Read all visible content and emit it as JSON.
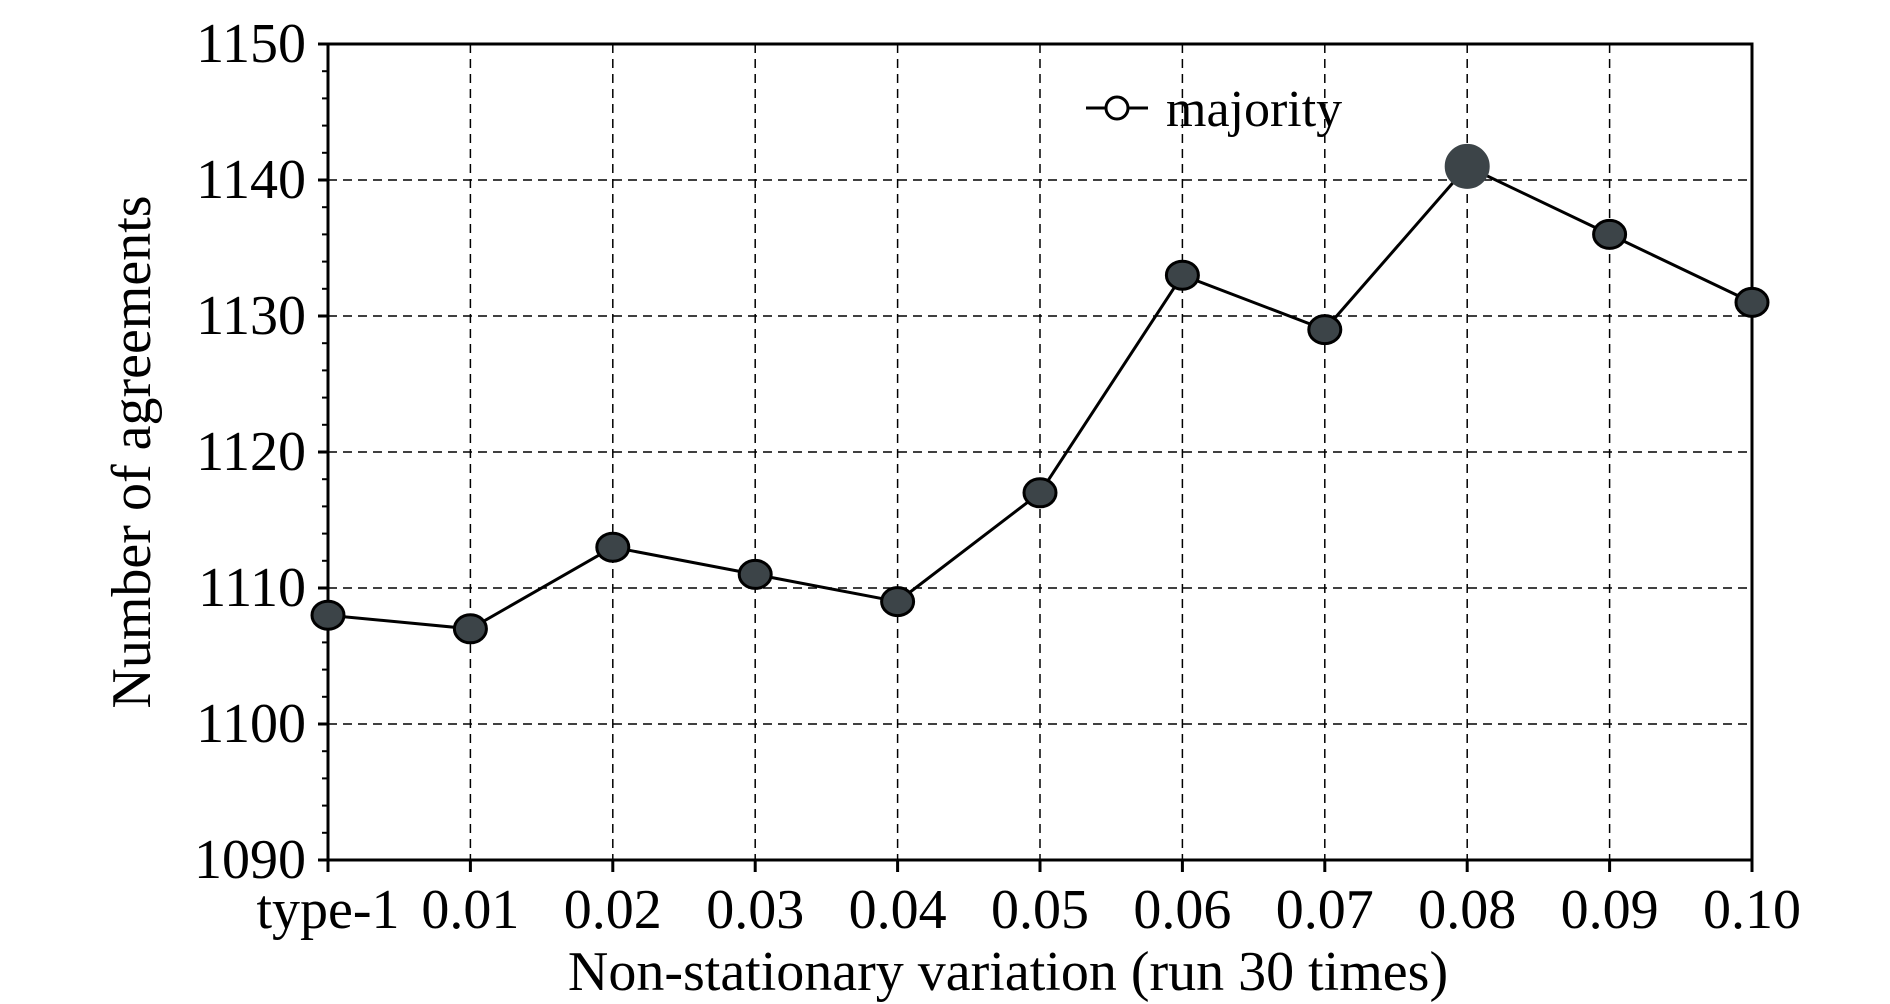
{
  "chart_data": {
    "type": "line",
    "title": "",
    "xlabel": "Non-stationary variation (run 30 times)",
    "ylabel": "Number of agreements",
    "categories": [
      "type-1",
      "0.01",
      "0.02",
      "0.03",
      "0.04",
      "0.05",
      "0.06",
      "0.07",
      "0.08",
      "0.09",
      "0.10"
    ],
    "series": [
      {
        "name": "majority",
        "values": [
          1108,
          1107,
          1113,
          1111,
          1109,
          1117,
          1133,
          1129,
          1141,
          1136,
          1131
        ]
      }
    ],
    "ylim": [
      1090,
      1150
    ],
    "yticks": [
      "1090",
      "1100",
      "1110",
      "1120",
      "1130",
      "1140",
      "1150"
    ],
    "grid": true,
    "grid_style": "dashed",
    "legend_position": "top-right",
    "highlighted_point": "0.08",
    "colors": {
      "marker_fill": "#3c4448",
      "line": "#000000",
      "grid": "#000000"
    }
  }
}
